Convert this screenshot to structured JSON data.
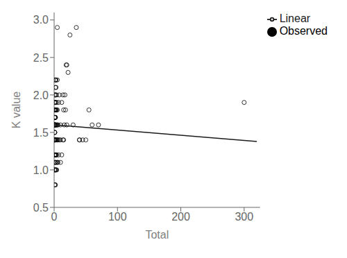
{
  "chart_data": {
    "type": "scatter",
    "x_label": "Total",
    "y_label": "K value",
    "xlim": [
      0,
      325
    ],
    "ylim": [
      0.5,
      3.1
    ],
    "xticks": [
      0,
      100,
      200,
      300
    ],
    "yticks": [
      0.5,
      {
        "value": 1,
        "label": "1.0"
      },
      1.5,
      {
        "value": 2,
        "label": "2.0"
      },
      2.5,
      {
        "value": 3,
        "label": "3.0"
      }
    ],
    "grid": false,
    "legend": "upper right",
    "series": [
      {
        "name": "Observed",
        "type": "scatter",
        "marker": "circle",
        "color": "#000000",
        "x": [
          1,
          1,
          1,
          1,
          1,
          1,
          1,
          1,
          1,
          1,
          1,
          1,
          1,
          1,
          1,
          1,
          1,
          1,
          1,
          1,
          1,
          1,
          1,
          1,
          1,
          1,
          1,
          1,
          1,
          1,
          1,
          1,
          1,
          1,
          1,
          1,
          1,
          1,
          1,
          1,
          2,
          2,
          2,
          2,
          2,
          2,
          2,
          2,
          2,
          2,
          2,
          2,
          2,
          2,
          2,
          2,
          2,
          2,
          2,
          2,
          3,
          3,
          3,
          3,
          3,
          3,
          3,
          3,
          4,
          4,
          4,
          4,
          4,
          4,
          4,
          5,
          5,
          5,
          5,
          5,
          5,
          6,
          6,
          6,
          7,
          7,
          8,
          8,
          10,
          10,
          10,
          12,
          12,
          14,
          14,
          15,
          15,
          16,
          17,
          18,
          19,
          20,
          20,
          22,
          25,
          30,
          35,
          40,
          40,
          45,
          50,
          55,
          60,
          70,
          300
        ],
        "values": [
          0.8,
          0.8,
          1.0,
          1.0,
          1.0,
          1.1,
          1.2,
          1.2,
          1.2,
          1.2,
          1.4,
          1.4,
          1.4,
          1.4,
          1.4,
          1.4,
          1.4,
          1.5,
          1.5,
          1.5,
          1.6,
          1.6,
          1.6,
          1.6,
          1.6,
          1.6,
          1.6,
          1.6,
          1.7,
          1.7,
          1.7,
          1.7,
          1.7,
          1.8,
          1.8,
          1.8,
          1.8,
          1.9,
          1.9,
          2.0,
          0.8,
          1.0,
          1.1,
          1.2,
          1.2,
          1.4,
          1.4,
          1.6,
          1.6,
          1.7,
          1.7,
          1.8,
          1.8,
          1.9,
          1.9,
          2.0,
          2.0,
          2.1,
          2.2,
          2.2,
          1.0,
          1.1,
          1.2,
          1.4,
          1.6,
          1.8,
          2.1,
          2.2,
          1.0,
          1.2,
          1.4,
          1.6,
          1.8,
          1.9,
          2.0,
          1.1,
          1.4,
          1.6,
          1.8,
          2.2,
          2.9,
          1.1,
          1.4,
          1.6,
          1.2,
          1.9,
          1.4,
          2.0,
          1.1,
          1.4,
          1.6,
          1.2,
          1.9,
          1.4,
          2.0,
          1.4,
          1.8,
          1.6,
          2.0,
          1.8,
          2.4,
          1.6,
          2.4,
          2.3,
          2.8,
          1.6,
          2.9,
          1.4,
          1.4,
          1.4,
          1.4,
          1.8,
          1.6,
          1.6,
          1.9
        ]
      },
      {
        "name": "Linear",
        "type": "line",
        "color": "#1a1a1a",
        "x": [
          0,
          320
        ],
        "values": [
          1.6,
          1.38
        ]
      }
    ]
  }
}
